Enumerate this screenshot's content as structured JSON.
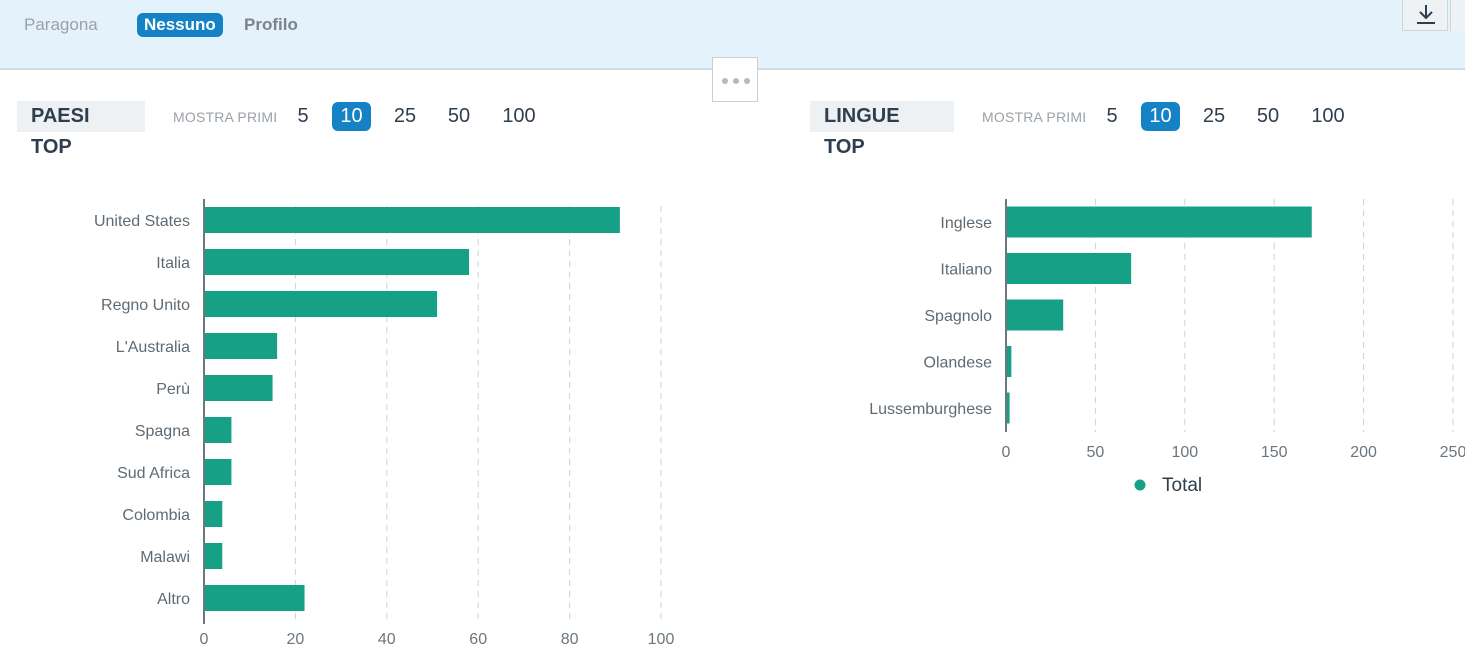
{
  "topbar": {
    "paragona": "Paragona",
    "nessuno": "Nessuno",
    "profilo": "Profilo"
  },
  "icons": {
    "download": "download-icon",
    "collapse": "ellipsis-icon"
  },
  "colors": {
    "bar": "#16a085",
    "accent": "#1582c5",
    "topbar_bg": "#e4f3fb"
  },
  "countries": {
    "title": "PAESI TOP",
    "show_label": "MOSTRA PRIMI",
    "options": [
      "5",
      "10",
      "25",
      "50",
      "100"
    ],
    "selected": "10"
  },
  "languages": {
    "title": "LINGUE TOP",
    "show_label": "MOSTRA PRIMI",
    "options": [
      "5",
      "10",
      "25",
      "50",
      "100"
    ],
    "selected": "10"
  },
  "chart_data": [
    {
      "type": "bar",
      "orientation": "horizontal",
      "categories": [
        "United States",
        "Italia",
        "Regno Unito",
        "L'Australia",
        "Perù",
        "Spagna",
        "Sud Africa",
        "Colombia",
        "Malawi",
        "Altro"
      ],
      "values": [
        91,
        58,
        51,
        16,
        15,
        6,
        6,
        4,
        4,
        22
      ],
      "xlim": [
        0,
        100
      ],
      "xticks": [
        0,
        20,
        40,
        60,
        80,
        100
      ],
      "grid": true,
      "title": "",
      "xlabel": "",
      "ylabel": ""
    },
    {
      "type": "bar",
      "orientation": "horizontal",
      "categories": [
        "Inglese",
        "Italiano",
        "Spagnolo",
        "Olandese",
        "Lussemburghese"
      ],
      "values": [
        171,
        70,
        32,
        3,
        2
      ],
      "xlim": [
        0,
        250
      ],
      "xticks": [
        0,
        50,
        100,
        150,
        200,
        250
      ],
      "series": [
        {
          "name": "Total"
        }
      ],
      "legend": "bottom",
      "grid": true,
      "title": "",
      "xlabel": "",
      "ylabel": ""
    }
  ]
}
